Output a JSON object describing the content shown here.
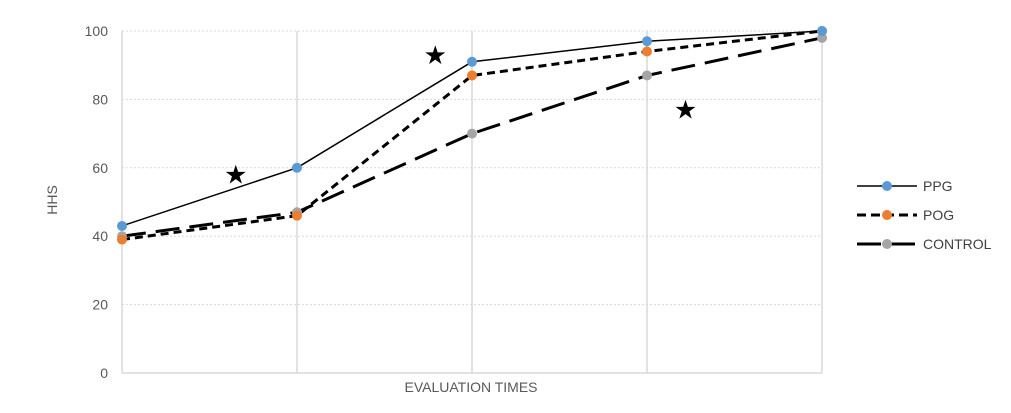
{
  "chart_data": {
    "type": "line",
    "title": "",
    "xlabel": "EVALUATION TIMES",
    "ylabel": "HHS",
    "x": [
      1,
      2,
      3,
      4,
      5
    ],
    "xlim": [
      1,
      5
    ],
    "ylim": [
      0,
      100
    ],
    "yticks": [
      "0",
      "20",
      "40",
      "60",
      "80",
      "100"
    ],
    "grid": true,
    "legend_position": "right",
    "series": [
      {
        "name": "PPG",
        "values": [
          43,
          60,
          91,
          97,
          100
        ],
        "color": "#5B9BD5",
        "line_style": "solid"
      },
      {
        "name": "POG",
        "values": [
          39,
          46,
          87,
          94,
          100
        ],
        "color": "#ED7D31",
        "line_style": "dashed"
      },
      {
        "name": "CONTROL",
        "values": [
          40,
          47,
          70,
          87,
          98
        ],
        "color": "#A5A5A5",
        "line_style": "long-dashed"
      }
    ],
    "annotations": [
      {
        "text": "★",
        "x": 1.65,
        "y": 58
      },
      {
        "text": "★",
        "x": 2.79,
        "y": 93
      },
      {
        "text": "★",
        "x": 4.22,
        "y": 77
      }
    ]
  }
}
